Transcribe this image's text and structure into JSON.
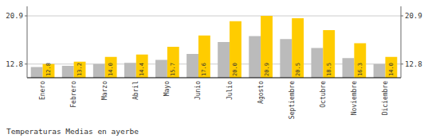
{
  "chart_data": {
    "type": "bar",
    "title": "Temperaturas Medias en ayerbe",
    "categories": [
      "Enero",
      "Febrero",
      "Marzo",
      "Abril",
      "Mayo",
      "Junio",
      "Julio",
      "Agosto",
      "Septiembre",
      "Octubre",
      "Noviembre",
      "Diciembre"
    ],
    "series": [
      {
        "color": "#BBBBBB",
        "values": [
          12.3,
          12.5,
          12.8,
          13.0,
          13.5,
          14.5,
          16.5,
          17.5,
          17.0,
          15.5,
          13.8,
          12.8
        ]
      },
      {
        "color": "#FFCC00",
        "data_labels": true,
        "values": [
          12.8,
          13.2,
          14.0,
          14.4,
          15.7,
          17.6,
          20.0,
          20.9,
          20.5,
          18.5,
          16.3,
          14.0
        ],
        "value_labels": [
          "12.8",
          "13.2",
          "14.0",
          "14.4",
          "15.7",
          "17.6",
          "20.0",
          "20.9",
          "20.5",
          "18.5",
          "16.3",
          "14.0"
        ]
      }
    ],
    "ylim": [
      10.5,
      22.5
    ],
    "yticks": [
      12.8,
      20.9
    ],
    "y2lim": [
      10.5,
      22.5
    ],
    "y2ticks": [
      12.8,
      20.9
    ],
    "grid": true
  }
}
